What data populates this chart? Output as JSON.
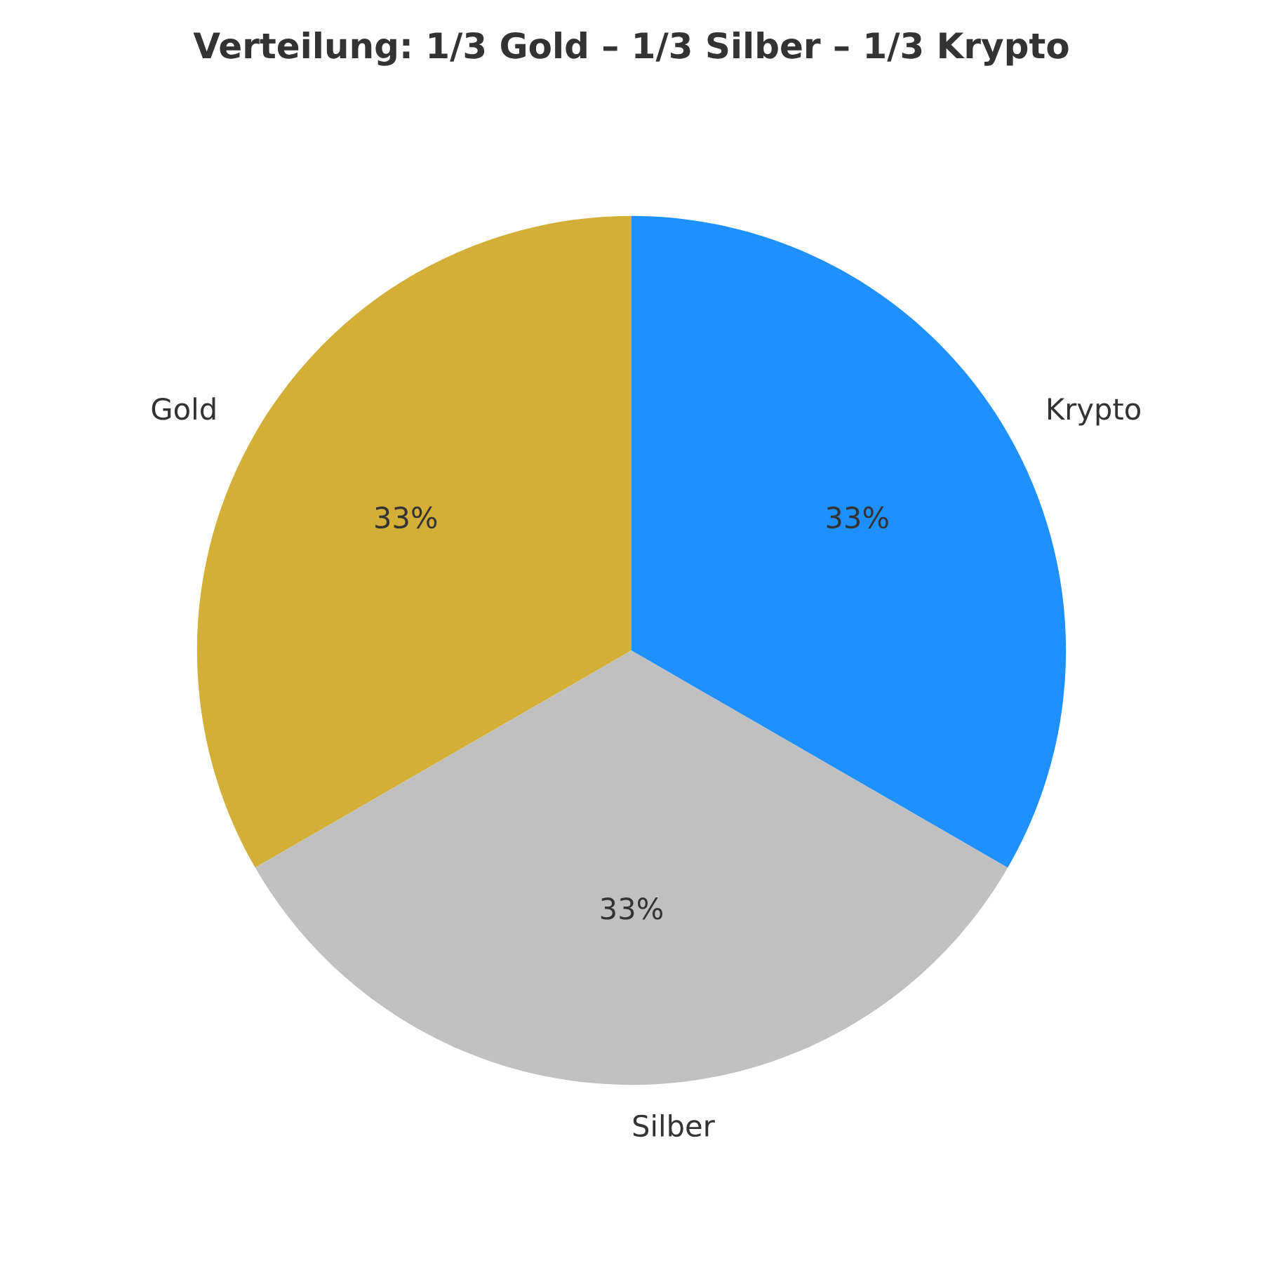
{
  "chart_data": {
    "type": "pie",
    "title": "Verteilung: 1/3 Gold – 1/3 Silber – 1/3 Krypto",
    "categories": [
      "Gold",
      "Silber",
      "Krypto"
    ],
    "values": [
      33,
      33,
      33
    ],
    "colors": [
      "#d4af37",
      "#c0c0c0",
      "#1e90ff"
    ],
    "value_labels": [
      "33%",
      "33%",
      "33%"
    ]
  }
}
